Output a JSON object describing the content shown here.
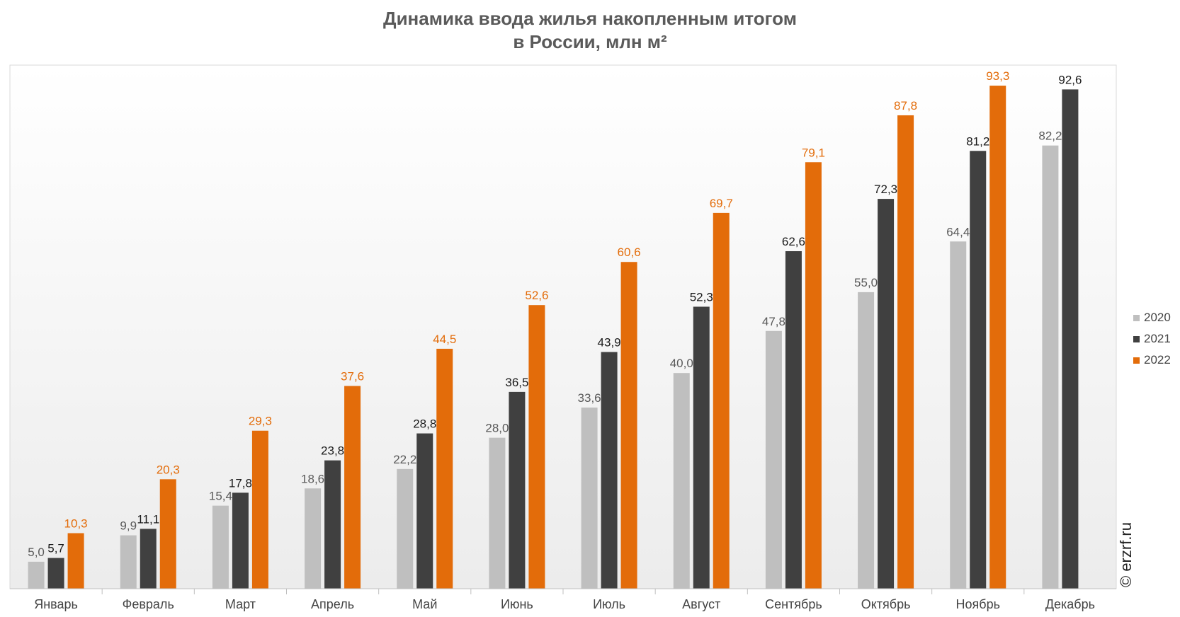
{
  "title_line1": "Динамика ввода жилья накопленным итогом",
  "title_line2": "в России, млн м²",
  "credit": "© erzrf.ru",
  "chart_data": {
    "type": "bar",
    "title": "Динамика ввода жилья накопленным итогом в России, млн м²",
    "categories": [
      "Январь",
      "Февраль",
      "Март",
      "Апрель",
      "Май",
      "Июнь",
      "Июль",
      "Август",
      "Сентябрь",
      "Октябрь",
      "Ноябрь",
      "Декабрь"
    ],
    "series": [
      {
        "name": "2020",
        "color": "#bfbfbf",
        "label_color": "#595959",
        "values": [
          5.0,
          9.9,
          15.4,
          18.6,
          22.2,
          28.0,
          33.6,
          40.0,
          47.8,
          55.0,
          64.4,
          82.2
        ],
        "labels": [
          "5,0",
          "9,9",
          "15,4",
          "18,6",
          "22,2",
          "28,0",
          "33,6",
          "40,0",
          "47,8",
          "55,0",
          "64,4",
          "82,2"
        ]
      },
      {
        "name": "2021",
        "color": "#404040",
        "label_color": "#1a1a1a",
        "values": [
          5.7,
          11.1,
          17.8,
          23.8,
          28.8,
          36.5,
          43.9,
          52.3,
          62.6,
          72.3,
          81.2,
          92.6
        ],
        "labels": [
          "5,7",
          "11,1",
          "17,8",
          "23,8",
          "28,8",
          "36,5",
          "43,9",
          "52,3",
          "62,6",
          "72,3",
          "81,2",
          "92,6"
        ]
      },
      {
        "name": "2022",
        "color": "#e36c0a",
        "label_color": "#e36c0a",
        "values": [
          10.3,
          20.3,
          29.3,
          37.6,
          44.5,
          52.6,
          60.6,
          69.7,
          79.1,
          87.8,
          93.3,
          null
        ],
        "labels": [
          "10,3",
          "20,3",
          "29,3",
          "37,6",
          "44,5",
          "52,6",
          "60,6",
          "69,7",
          "79,1",
          "87,8",
          "93,3",
          null
        ]
      }
    ],
    "ylim": [
      0,
      100
    ],
    "grid": false,
    "legend_position": "right"
  }
}
